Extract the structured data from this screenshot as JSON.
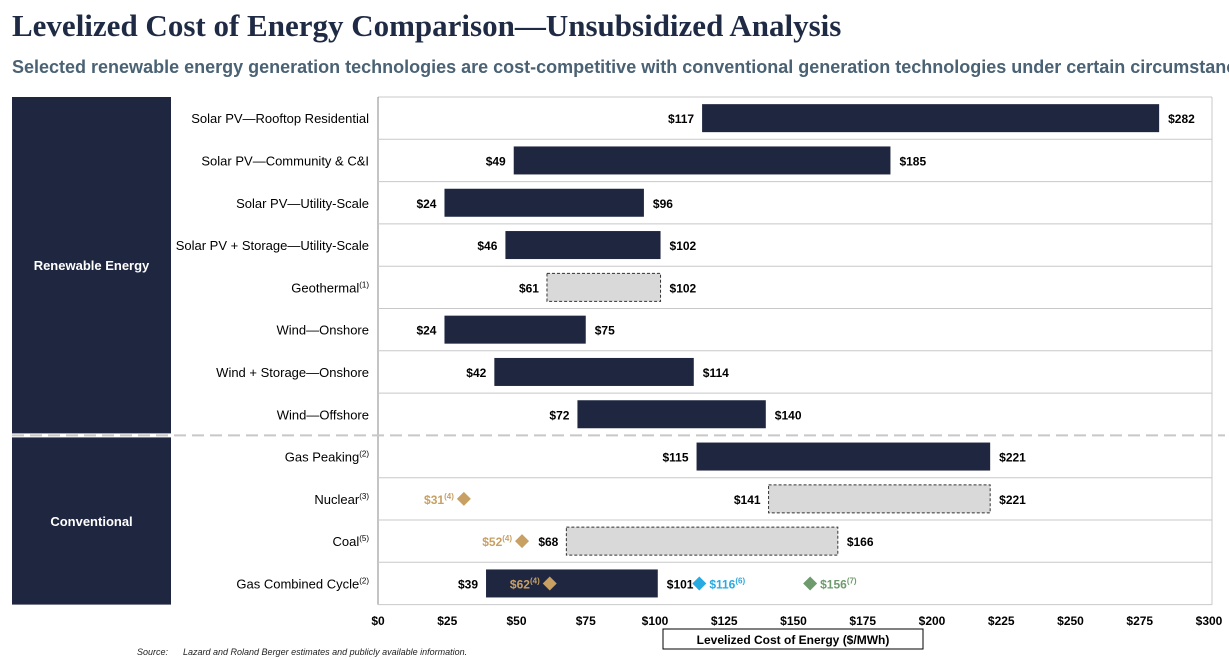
{
  "title": "Levelized Cost of Energy Comparison—Unsubsidized Analysis",
  "subtitle": "Selected renewable energy generation technologies are cost-competitive with conventional generation technologies under certain circumstances",
  "source": {
    "label": "Source:",
    "text": "Lazard and Roland Berger estimates and publicly available information."
  },
  "colors": {
    "group_bg": "#1f2640",
    "bar_dark": "#1f2640",
    "bar_light": "#d9d9d9",
    "gold": "#c8a064",
    "blue": "#29aae1",
    "green": "#6e9b6e",
    "divider": "#c8c8c8"
  },
  "chart_data": {
    "type": "bar",
    "orientation": "horizontal-range",
    "xlabel": "Levelized Cost of Energy ($/MWh)",
    "xlim": [
      0,
      300
    ],
    "xticks": [
      0,
      25,
      50,
      75,
      100,
      125,
      150,
      175,
      200,
      225,
      250,
      275,
      300
    ],
    "xtick_labels": [
      "$0",
      "$25",
      "$50",
      "$75",
      "$100",
      "$125",
      "$150",
      "$175",
      "$200",
      "$225",
      "$250",
      "$275",
      "$300"
    ],
    "groups": [
      {
        "name": "Renewable Energy",
        "rows": [
          0,
          1,
          2,
          3,
          4,
          5,
          6,
          7
        ]
      },
      {
        "name": "Conventional",
        "rows": [
          8,
          9,
          10,
          11
        ]
      }
    ],
    "rows": [
      {
        "label": "Solar PV—Rooftop Residential",
        "sup": "",
        "low": 117,
        "high": 282,
        "low_label": "$117",
        "high_label": "$282",
        "style": "dark",
        "markers": []
      },
      {
        "label": "Solar PV—Community & C&I",
        "sup": "",
        "low": 49,
        "high": 185,
        "low_label": "$49",
        "high_label": "$185",
        "style": "dark",
        "markers": []
      },
      {
        "label": "Solar PV—Utility-Scale",
        "sup": "",
        "low": 24,
        "high": 96,
        "low_label": "$24",
        "high_label": "$96",
        "style": "dark",
        "markers": []
      },
      {
        "label": "Solar PV + Storage—Utility-Scale",
        "sup": "",
        "low": 46,
        "high": 102,
        "low_label": "$46",
        "high_label": "$102",
        "style": "dark",
        "markers": []
      },
      {
        "label": "Geothermal",
        "sup": "(1)",
        "low": 61,
        "high": 102,
        "low_label": "$61",
        "high_label": "$102",
        "style": "light",
        "markers": []
      },
      {
        "label": "Wind—Onshore",
        "sup": "",
        "low": 24,
        "high": 75,
        "low_label": "$24",
        "high_label": "$75",
        "style": "dark",
        "markers": []
      },
      {
        "label": "Wind + Storage—Onshore",
        "sup": "",
        "low": 42,
        "high": 114,
        "low_label": "$42",
        "high_label": "$114",
        "style": "dark",
        "markers": []
      },
      {
        "label": "Wind—Offshore",
        "sup": "",
        "low": 72,
        "high": 140,
        "low_label": "$72",
        "high_label": "$140",
        "style": "dark",
        "markers": []
      },
      {
        "label": "Gas Peaking",
        "sup": "(2)",
        "low": 115,
        "high": 221,
        "low_label": "$115",
        "high_label": "$221",
        "style": "dark",
        "markers": []
      },
      {
        "label": "Nuclear",
        "sup": "(3)",
        "low": 141,
        "high": 221,
        "low_label": "$141",
        "high_label": "$221",
        "style": "light",
        "markers": [
          {
            "value": 31,
            "label": "$31",
            "sup": "(4)",
            "color": "gold"
          }
        ]
      },
      {
        "label": "Coal",
        "sup": "(5)",
        "low": 68,
        "high": 166,
        "low_label": "$68",
        "high_label": "$166",
        "style": "light",
        "markers": [
          {
            "value": 52,
            "label": "$52",
            "sup": "(4)",
            "color": "gold"
          }
        ]
      },
      {
        "label": "Gas Combined Cycle",
        "sup": "(2)",
        "low": 39,
        "high": 101,
        "low_label": "$39",
        "high_label": "$101",
        "style": "dark",
        "markers": [
          {
            "value": 62,
            "label": "$62",
            "sup": "(4)",
            "color": "gold"
          },
          {
            "value": 116,
            "label": "$116",
            "sup": "(6)",
            "color": "blue"
          },
          {
            "value": 156,
            "label": "$156",
            "sup": "(7)",
            "color": "green"
          }
        ]
      }
    ]
  }
}
